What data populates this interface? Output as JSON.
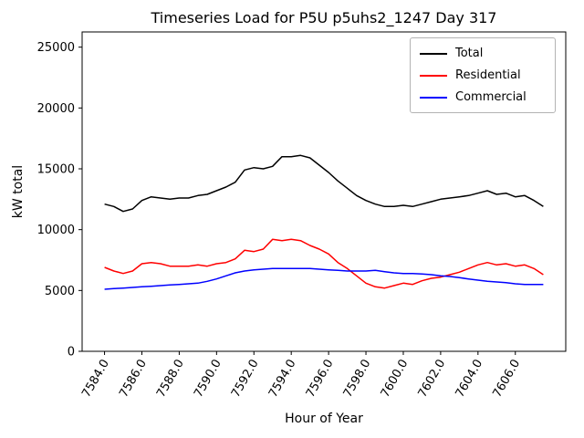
{
  "chart_data": {
    "type": "line",
    "title": "Timeseries Load for P5U p5uhs2_1247  Day 317",
    "xlabel": "Hour of Year",
    "ylabel": "kW total",
    "xlim": [
      7582.8,
      7608.7
    ],
    "ylim": [
      0,
      26250
    ],
    "x_ticks": [
      "7584.0",
      "7586.0",
      "7588.0",
      "7590.0",
      "7592.0",
      "7594.0",
      "7596.0",
      "7598.0",
      "7600.0",
      "7602.0",
      "7604.0",
      "7606.0"
    ],
    "y_ticks": [
      0,
      5000,
      10000,
      15000,
      20000,
      25000
    ],
    "grid": false,
    "legend_position": "upper right",
    "x": [
      7584.0,
      7584.5,
      7585.0,
      7585.5,
      7586.0,
      7586.5,
      7587.0,
      7587.5,
      7588.0,
      7588.5,
      7589.0,
      7589.5,
      7590.0,
      7590.5,
      7591.0,
      7591.5,
      7592.0,
      7592.5,
      7593.0,
      7593.5,
      7594.0,
      7594.5,
      7595.0,
      7595.5,
      7596.0,
      7596.5,
      7597.0,
      7597.5,
      7598.0,
      7598.5,
      7599.0,
      7599.5,
      7600.0,
      7600.5,
      7601.0,
      7601.5,
      7602.0,
      7602.5,
      7603.0,
      7603.5,
      7604.0,
      7604.5,
      7605.0,
      7605.5,
      7606.0,
      7606.5,
      7607.0,
      7607.5
    ],
    "series": [
      {
        "name": "Total",
        "color": "#000000",
        "values": [
          12100,
          11900,
          11500,
          11700,
          12400,
          12700,
          12600,
          12500,
          12600,
          12600,
          12800,
          12900,
          13200,
          13500,
          13900,
          14900,
          15100,
          15000,
          15200,
          16000,
          16000,
          16100,
          15900,
          15300,
          14700,
          14000,
          13400,
          12800,
          12400,
          12100,
          11900,
          11900,
          12000,
          11900,
          12100,
          12300,
          12500,
          12600,
          12700,
          12800,
          13000,
          13200,
          12900,
          13000,
          12700,
          12800,
          12400,
          11900
        ]
      },
      {
        "name": "Residential",
        "color": "#ff0000",
        "values": [
          6900,
          6600,
          6400,
          6600,
          7200,
          7300,
          7200,
          7000,
          7000,
          7000,
          7100,
          7000,
          7200,
          7300,
          7600,
          8300,
          8200,
          8400,
          9200,
          9100,
          9200,
          9100,
          8700,
          8400,
          8000,
          7300,
          6800,
          6200,
          5600,
          5300,
          5200,
          5400,
          5600,
          5500,
          5800,
          6000,
          6100,
          6300,
          6500,
          6800,
          7100,
          7300,
          7100,
          7200,
          7000,
          7100,
          6800,
          6300
        ]
      },
      {
        "name": "Commercial",
        "color": "#0000ff",
        "values": [
          5100,
          5150,
          5200,
          5250,
          5300,
          5350,
          5400,
          5450,
          5500,
          5550,
          5600,
          5750,
          5950,
          6200,
          6450,
          6600,
          6700,
          6750,
          6800,
          6800,
          6800,
          6800,
          6800,
          6750,
          6700,
          6650,
          6600,
          6600,
          6600,
          6650,
          6550,
          6450,
          6400,
          6400,
          6350,
          6300,
          6200,
          6150,
          6050,
          5950,
          5850,
          5750,
          5700,
          5650,
          5550,
          5500,
          5500,
          5500
        ]
      }
    ]
  }
}
